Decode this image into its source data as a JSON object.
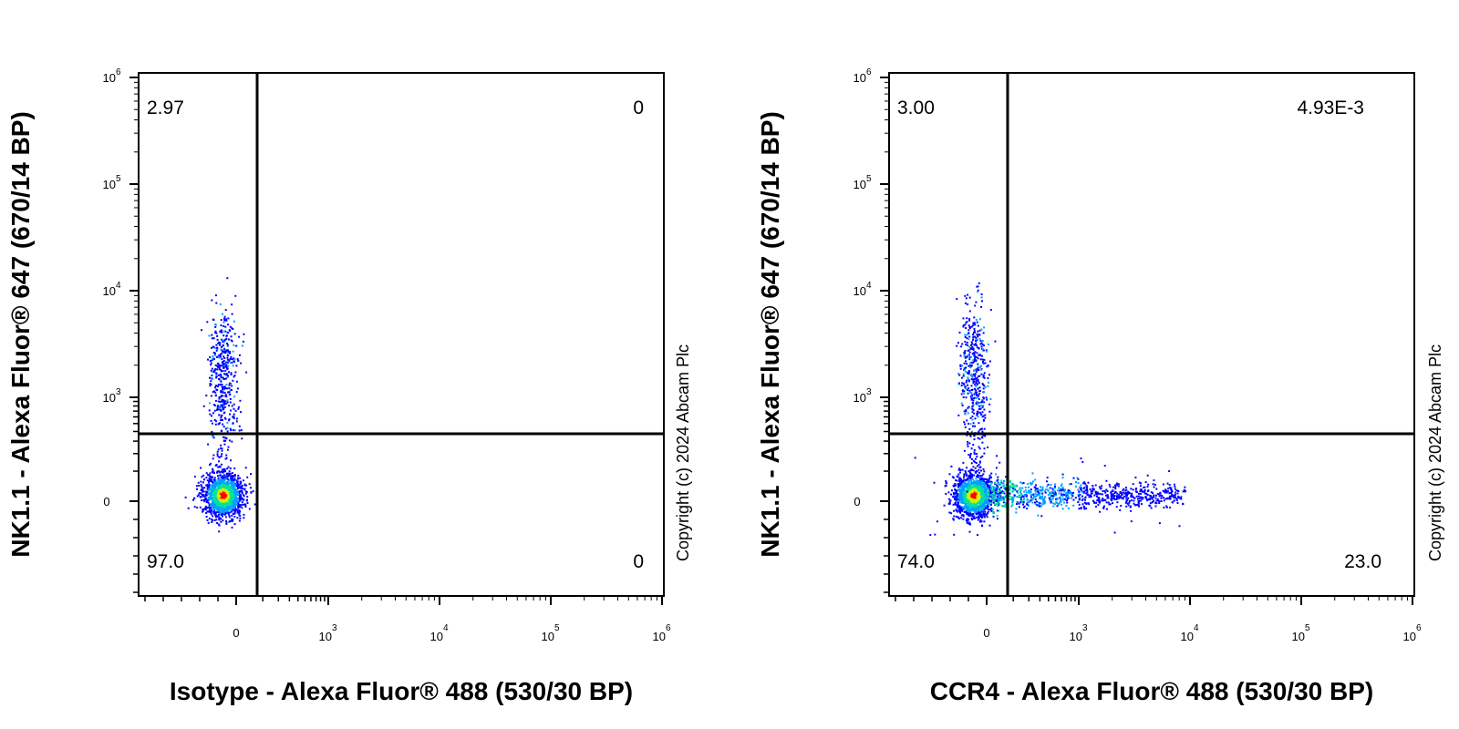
{
  "chart_data": [
    {
      "type": "scatter",
      "subtype": "flow-cytometry-density-dot-plot",
      "xlabel": "Isotype - Alexa Fluor® 488 (530/30 BP)",
      "ylabel": "NK1.1 - Alexa Fluor® 647 (670/14 BP)",
      "x_scale": "biexponential",
      "y_scale": "biexponential",
      "x_ticks": [
        {
          "base": "0",
          "exp": ""
        },
        {
          "base": "10",
          "exp": "3"
        },
        {
          "base": "10",
          "exp": "4"
        },
        {
          "base": "10",
          "exp": "5"
        },
        {
          "base": "10",
          "exp": "6"
        }
      ],
      "y_ticks": [
        {
          "base": "0",
          "exp": ""
        },
        {
          "base": "10",
          "exp": "3"
        },
        {
          "base": "10",
          "exp": "4"
        },
        {
          "base": "10",
          "exp": "5"
        },
        {
          "base": "10",
          "exp": "6"
        }
      ],
      "quadrant_labels": {
        "upper_left": "2.97",
        "upper_right": "0",
        "lower_left": "97.0",
        "lower_right": "0"
      },
      "quadrant_percentages": {
        "upper_left": 2.97,
        "upper_right": 0,
        "lower_left": 97.0,
        "lower_right": 0
      },
      "populations": [
        {
          "name": "",
          "center_x": -80,
          "center_y": 0,
          "fraction": 0.97
        },
        {
          "name": "",
          "center_x": -80,
          "center_y": 1800,
          "fraction": 0.0297
        }
      ],
      "copyright": "Copyright (c) 2024 Abcam Plc",
      "grid": false
    },
    {
      "type": "scatter",
      "subtype": "flow-cytometry-density-dot-plot",
      "xlabel": "CCR4 - Alexa Fluor® 488 (530/30 BP)",
      "ylabel": "NK1.1 - Alexa Fluor® 647 (670/14 BP)",
      "x_scale": "biexponential",
      "y_scale": "biexponential",
      "x_ticks": [
        {
          "base": "0",
          "exp": ""
        },
        {
          "base": "10",
          "exp": "3"
        },
        {
          "base": "10",
          "exp": "4"
        },
        {
          "base": "10",
          "exp": "5"
        },
        {
          "base": "10",
          "exp": "6"
        }
      ],
      "y_ticks": [
        {
          "base": "0",
          "exp": ""
        },
        {
          "base": "10",
          "exp": "3"
        },
        {
          "base": "10",
          "exp": "4"
        },
        {
          "base": "10",
          "exp": "5"
        },
        {
          "base": "10",
          "exp": "6"
        }
      ],
      "quadrant_labels": {
        "upper_left": "3.00",
        "upper_right": "4.93E-3",
        "lower_left": "74.0",
        "lower_right": "23.0"
      },
      "quadrant_percentages": {
        "upper_left": 3.0,
        "upper_right": 0.00493,
        "lower_left": 74.0,
        "lower_right": 23.0
      },
      "populations": [
        {
          "name": "",
          "center_x": -50,
          "center_y": 0,
          "fraction": 0.74
        },
        {
          "name": "",
          "center_x": 800,
          "center_y": 0,
          "fraction": 0.23
        },
        {
          "name": "",
          "center_x": -50,
          "center_y": 2000,
          "fraction": 0.03
        }
      ],
      "copyright": "Copyright (c) 2024 Abcam Plc",
      "grid": false
    }
  ],
  "colors": {
    "axis": "#000000",
    "density_low": "#0000ff",
    "density_mid_low": "#00a0ff",
    "density_mid": "#00e0a0",
    "density_mid_high": "#d0f000",
    "density_high": "#ff0000"
  }
}
